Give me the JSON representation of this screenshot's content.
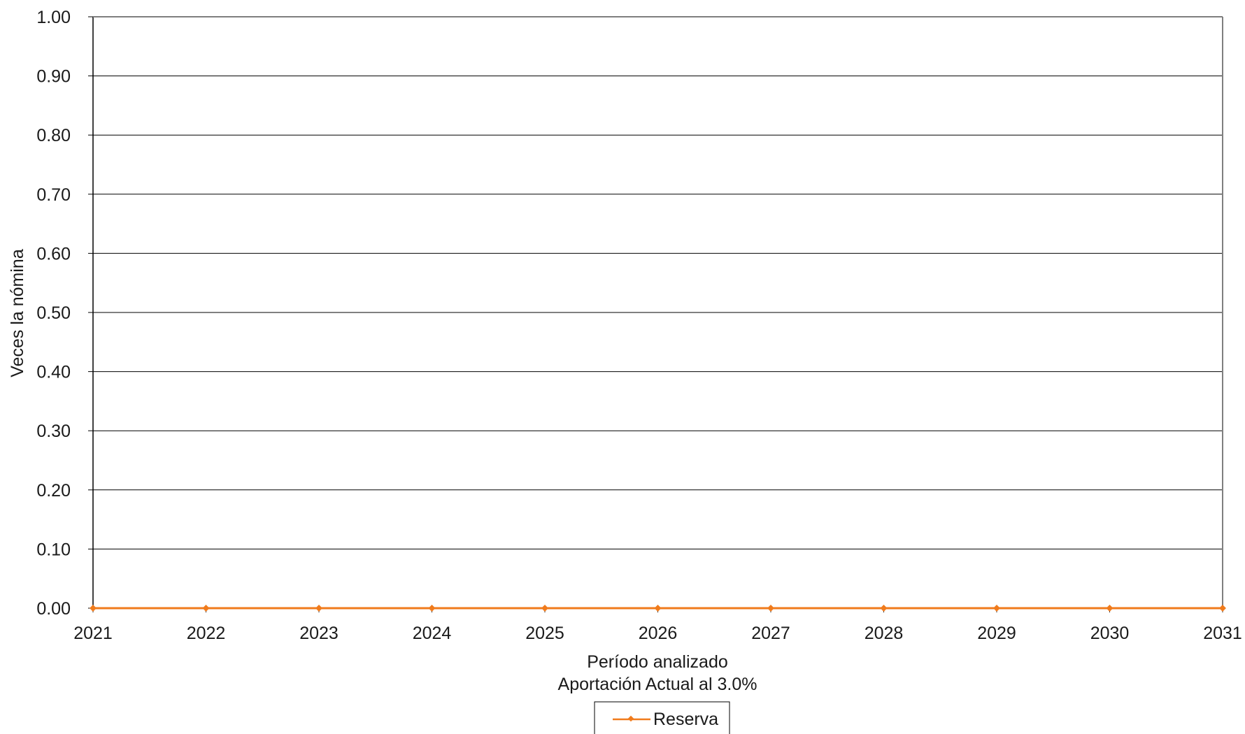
{
  "chart_data": {
    "type": "line",
    "x": [
      2021,
      2022,
      2023,
      2024,
      2025,
      2026,
      2027,
      2028,
      2029,
      2030,
      2031
    ],
    "series": [
      {
        "name": "Reserva",
        "values": [
          0,
          0,
          0,
          0,
          0,
          0,
          0,
          0,
          0,
          0,
          0
        ],
        "color": "#f07b1c"
      }
    ],
    "xlabel": "Período analizado",
    "subtitle": "Aportación Actual al 3.0%",
    "ylabel": "Veces la nómina",
    "ylim": [
      0,
      1.0
    ],
    "yticks": [
      "0.00",
      "0.10",
      "0.20",
      "0.30",
      "0.40",
      "0.50",
      "0.60",
      "0.70",
      "0.80",
      "0.90",
      "1.00"
    ],
    "xticks": [
      "2021",
      "2022",
      "2023",
      "2024",
      "2025",
      "2026",
      "2027",
      "2028",
      "2029",
      "2030",
      "2031"
    ],
    "grid": true,
    "legend": "bottom-center",
    "colors": {
      "grid": "#000000",
      "frame": "#7f7f7f",
      "series": "#f07b1c"
    }
  }
}
